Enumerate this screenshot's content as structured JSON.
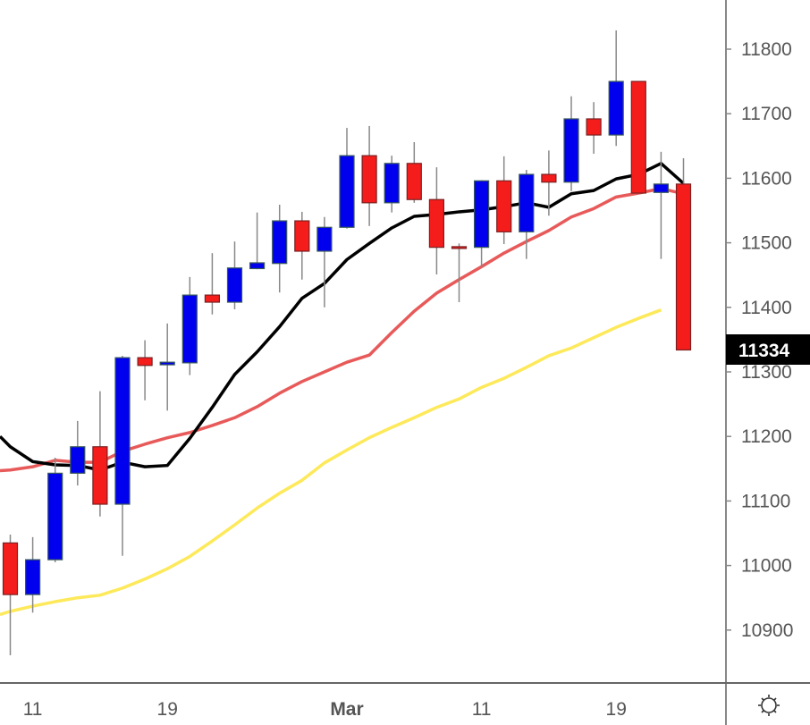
{
  "chart_data": {
    "type": "candlestick",
    "title": "",
    "xlabel": "",
    "ylabel": "",
    "ylim": [
      10820,
      11880
    ],
    "yticks": [
      10900,
      11000,
      11100,
      11200,
      11300,
      11400,
      11500,
      11600,
      11700,
      11800
    ],
    "xtick_labels": [
      {
        "index": 1,
        "label": "11",
        "bold": false
      },
      {
        "index": 7,
        "label": "19",
        "bold": false
      },
      {
        "index": 15,
        "label": "Mar",
        "bold": true
      },
      {
        "index": 21,
        "label": "11",
        "bold": false
      },
      {
        "index": 27,
        "label": "19",
        "bold": false
      }
    ],
    "last_price": "11334",
    "colors": {
      "up": "#0000ee",
      "down": "#f51c1c",
      "ma_fast": "#000000",
      "ma_mid": "#e85a5a",
      "ma_slow": "#fde95a",
      "price_label_bg": "#000000"
    },
    "candles": [
      {
        "o": 11035,
        "h": 11048,
        "l": 10861,
        "c": 10955
      },
      {
        "o": 10955,
        "h": 11044,
        "l": 10927,
        "c": 11009
      },
      {
        "o": 11009,
        "h": 11167,
        "l": 11005,
        "c": 11143
      },
      {
        "o": 11143,
        "h": 11224,
        "l": 11124,
        "c": 11184
      },
      {
        "o": 11184,
        "h": 11270,
        "l": 11076,
        "c": 11095
      },
      {
        "o": 11095,
        "h": 11325,
        "l": 11015,
        "c": 11322
      },
      {
        "o": 11322,
        "h": 11349,
        "l": 11256,
        "c": 11310
      },
      {
        "o": 11311,
        "h": 11375,
        "l": 11240,
        "c": 11315
      },
      {
        "o": 11314,
        "h": 11447,
        "l": 11295,
        "c": 11419
      },
      {
        "o": 11419,
        "h": 11484,
        "l": 11389,
        "c": 11408
      },
      {
        "o": 11408,
        "h": 11502,
        "l": 11397,
        "c": 11461
      },
      {
        "o": 11460,
        "h": 11547,
        "l": 11459,
        "c": 11469
      },
      {
        "o": 11468,
        "h": 11559,
        "l": 11423,
        "c": 11534
      },
      {
        "o": 11534,
        "h": 11548,
        "l": 11443,
        "c": 11487
      },
      {
        "o": 11487,
        "h": 11540,
        "l": 11400,
        "c": 11524
      },
      {
        "o": 11524,
        "h": 11678,
        "l": 11522,
        "c": 11635
      },
      {
        "o": 11635,
        "h": 11681,
        "l": 11526,
        "c": 11562
      },
      {
        "o": 11562,
        "h": 11635,
        "l": 11547,
        "c": 11623
      },
      {
        "o": 11623,
        "h": 11656,
        "l": 11562,
        "c": 11567
      },
      {
        "o": 11567,
        "h": 11617,
        "l": 11451,
        "c": 11493
      },
      {
        "o": 11494,
        "h": 11499,
        "l": 11408,
        "c": 11493
      },
      {
        "o": 11493,
        "h": 11597,
        "l": 11462,
        "c": 11596
      },
      {
        "o": 11596,
        "h": 11634,
        "l": 11498,
        "c": 11517
      },
      {
        "o": 11517,
        "h": 11613,
        "l": 11475,
        "c": 11606
      },
      {
        "o": 11606,
        "h": 11643,
        "l": 11542,
        "c": 11594
      },
      {
        "o": 11594,
        "h": 11727,
        "l": 11580,
        "c": 11692
      },
      {
        "o": 11692,
        "h": 11718,
        "l": 11638,
        "c": 11667
      },
      {
        "o": 11667,
        "h": 11829,
        "l": 11650,
        "c": 11750
      },
      {
        "o": 11750,
        "h": 11750,
        "l": 11577,
        "c": 11577
      },
      {
        "o": 11578,
        "h": 11641,
        "l": 11475,
        "c": 11591
      },
      {
        "o": 11591,
        "h": 11631,
        "l": 11334,
        "c": 11334
      }
    ],
    "series": [
      {
        "name": "ma_fast",
        "start": 11200,
        "values": [
          11184,
          11161,
          11156,
          11155,
          11148,
          11160,
          11153,
          11155,
          11197,
          11245,
          11296,
          11331,
          11370,
          11414,
          11437,
          11474,
          11499,
          11523,
          11541,
          11544,
          11548,
          11551,
          11556,
          11562,
          11555,
          11576,
          11581,
          11599,
          11606,
          11623,
          11592
        ]
      },
      {
        "name": "ma_mid",
        "start": 11147,
        "values": [
          11148,
          11153,
          11163,
          11160,
          11160,
          11177,
          11188,
          11198,
          11206,
          11217,
          11229,
          11246,
          11267,
          11285,
          11300,
          11315,
          11326,
          11361,
          11394,
          11422,
          11443,
          11463,
          11484,
          11502,
          11519,
          11540,
          11553,
          11571,
          11577,
          11584,
          11576
        ]
      },
      {
        "name": "ma_slow",
        "start": 10924,
        "values": [
          10929,
          10937,
          10944,
          10950,
          10954,
          10965,
          10979,
          10995,
          11014,
          11038,
          11063,
          11089,
          11112,
          11132,
          11159,
          11179,
          11198,
          11214,
          11229,
          11245,
          11258,
          11276,
          11290,
          11307,
          11325,
          11337,
          11353,
          11369,
          11383,
          11396,
          null
        ]
      }
    ]
  },
  "toolbar": {
    "settings_icon": "sun-gear-icon"
  }
}
